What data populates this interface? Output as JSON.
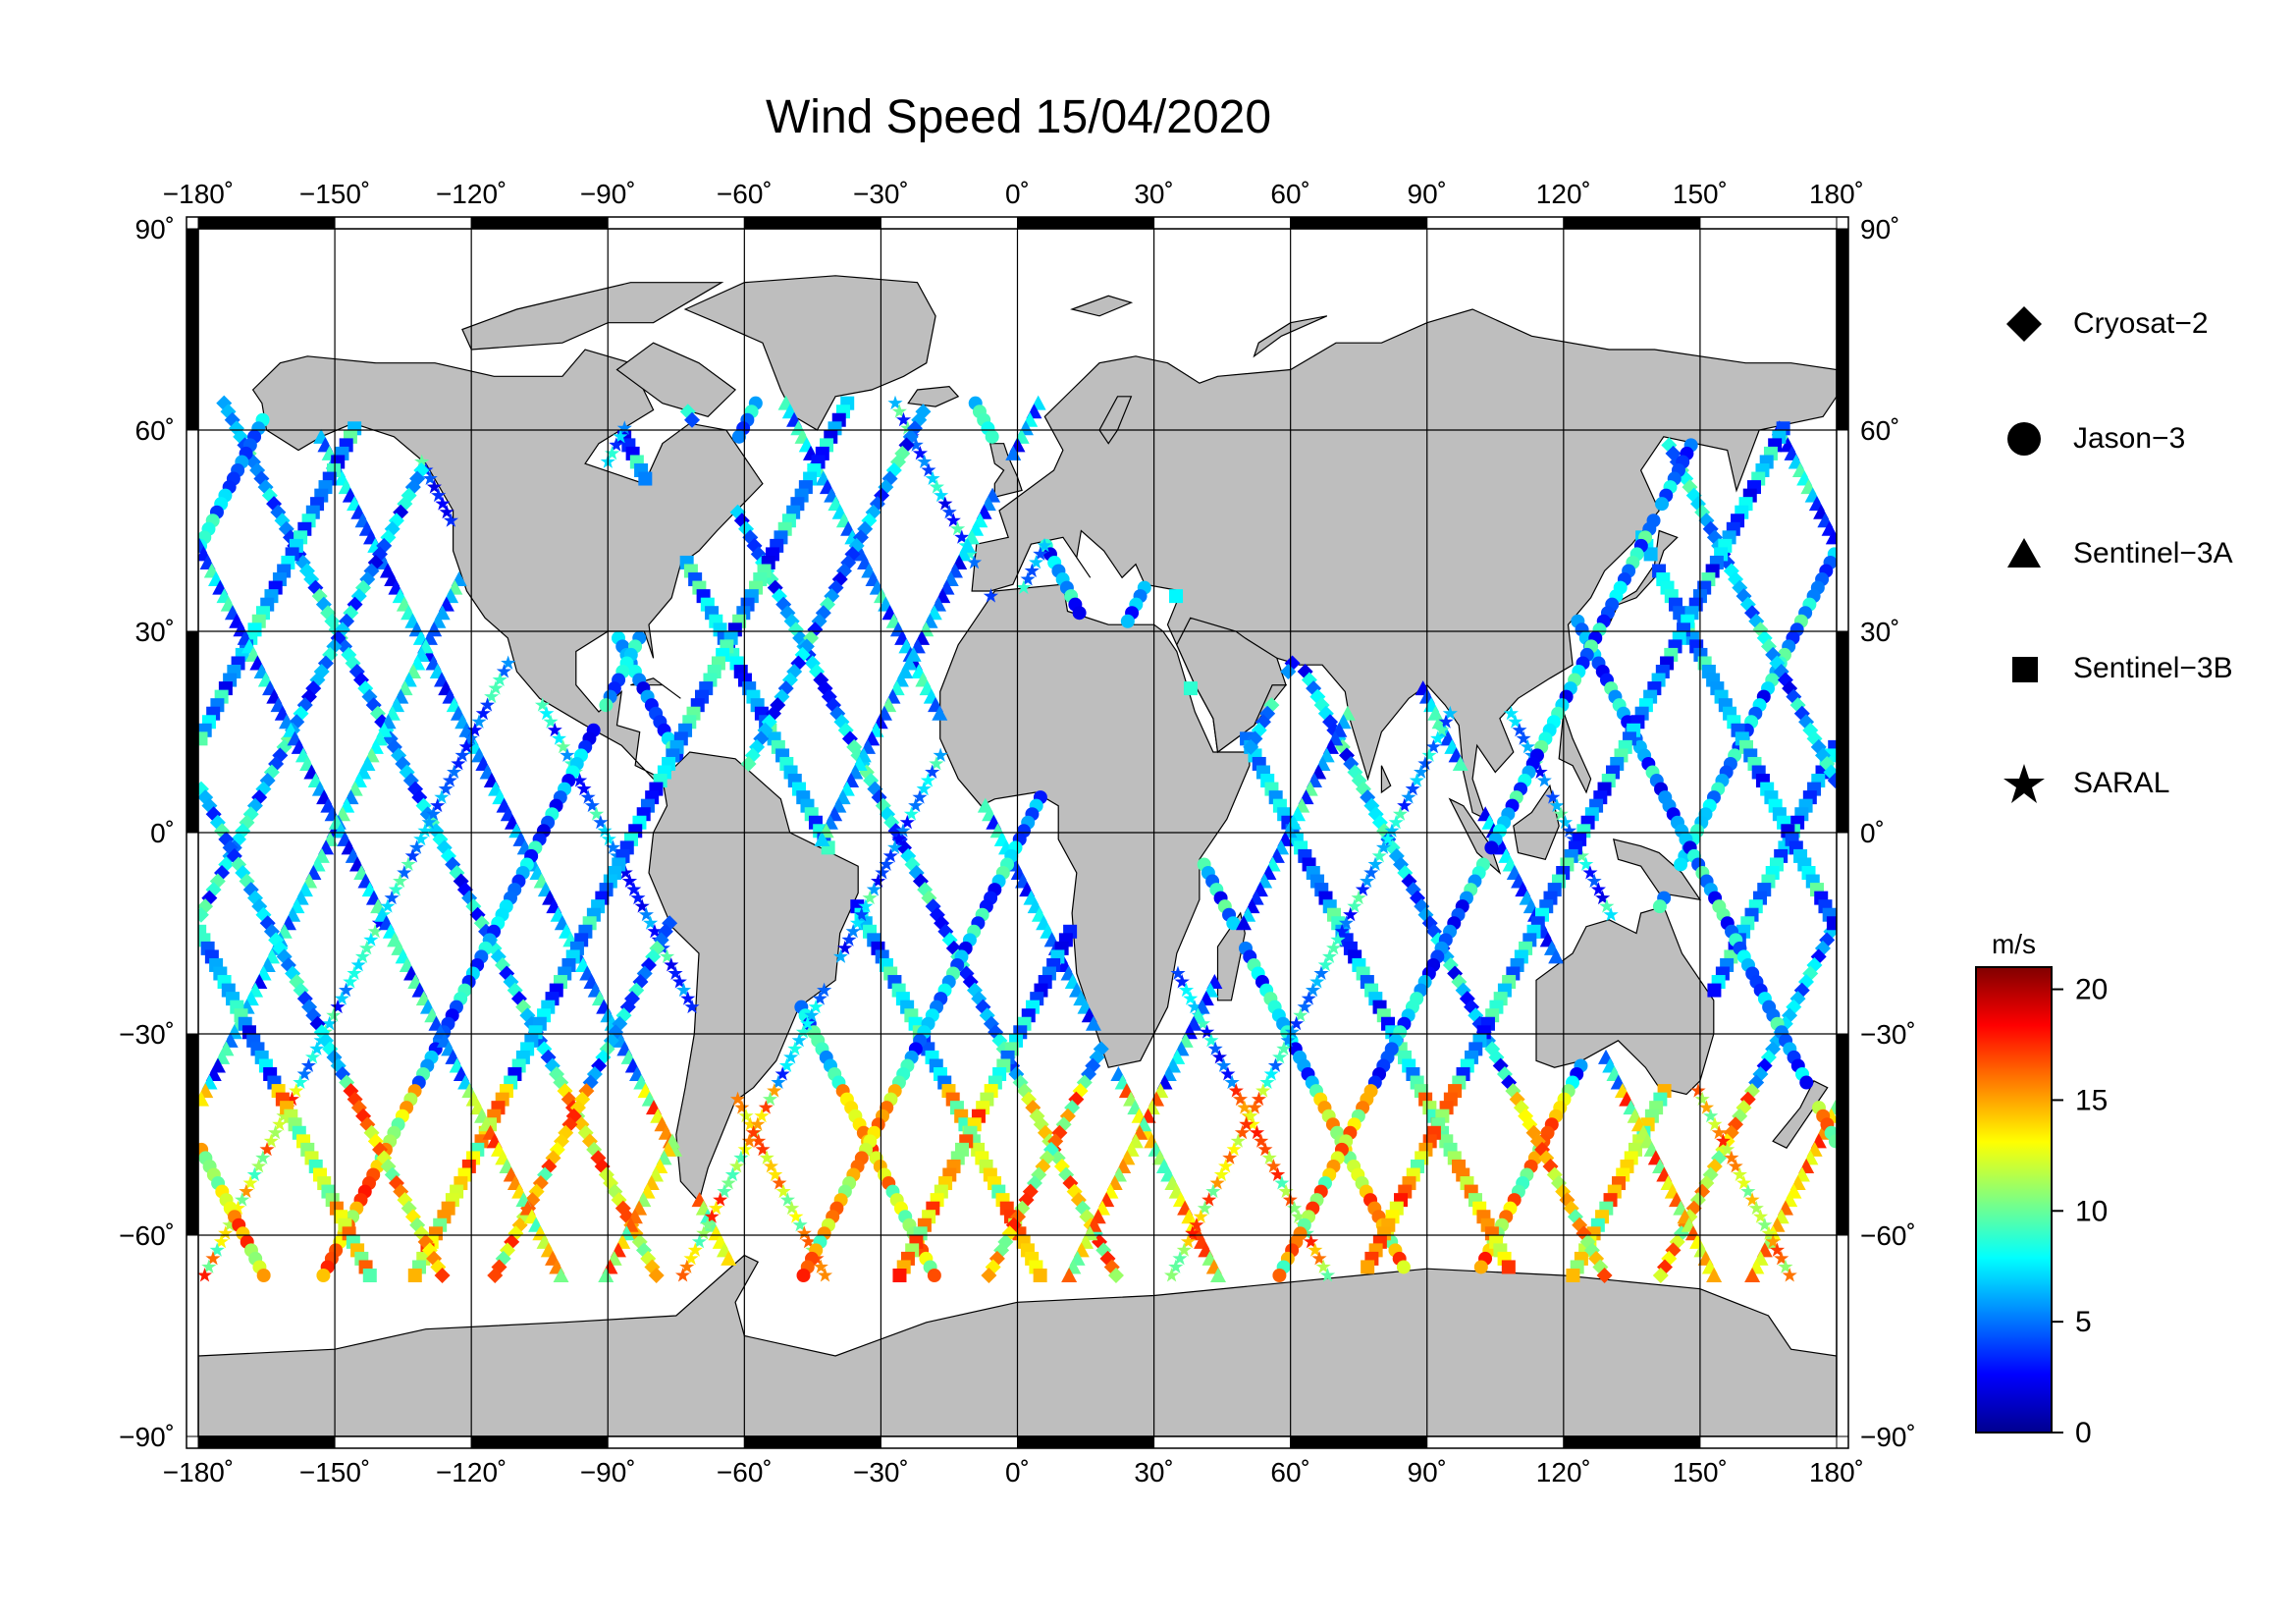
{
  "title": "Wind Speed 15/04/2020",
  "map": {
    "lon_ticks": [
      "−180˚",
      "−150˚",
      "−120˚",
      "−90˚",
      "−60˚",
      "−30˚",
      "0˚",
      "30˚",
      "60˚",
      "90˚",
      "120˚",
      "150˚",
      "180˚"
    ],
    "lon_values": [
      -180,
      -150,
      -120,
      -90,
      -60,
      -30,
      0,
      30,
      60,
      90,
      120,
      150,
      180
    ],
    "lat_ticks": [
      "90˚",
      "60˚",
      "30˚",
      "0˚",
      "−30˚",
      "−60˚",
      "−90˚"
    ],
    "lat_values": [
      90,
      60,
      30,
      0,
      -30,
      -60,
      -90
    ],
    "land_color": "#bebebe",
    "ocean_color": "#ffffff",
    "frame_colors": [
      "#000000",
      "#ffffff"
    ]
  },
  "legend": {
    "items": [
      {
        "label": "Cryosat−2",
        "symbol": "diamond-icon"
      },
      {
        "label": "Jason−3",
        "symbol": "circle-icon"
      },
      {
        "label": "Sentinel−3A",
        "symbol": "triangle-icon"
      },
      {
        "label": "Sentinel−3B",
        "symbol": "square-icon"
      },
      {
        "label": "SARAL",
        "symbol": "star-icon"
      }
    ]
  },
  "colorbar": {
    "unit": "m/s",
    "min": 0,
    "max": 21,
    "tick_labels": [
      "20",
      "15",
      "10",
      "5",
      "0"
    ],
    "tick_values": [
      20,
      15,
      10,
      5,
      0
    ],
    "colormap": [
      "#00008f",
      "#0000ff",
      "#0080ff",
      "#00ffff",
      "#80ff80",
      "#ffff00",
      "#ff8000",
      "#ff0000",
      "#800000"
    ]
  }
}
